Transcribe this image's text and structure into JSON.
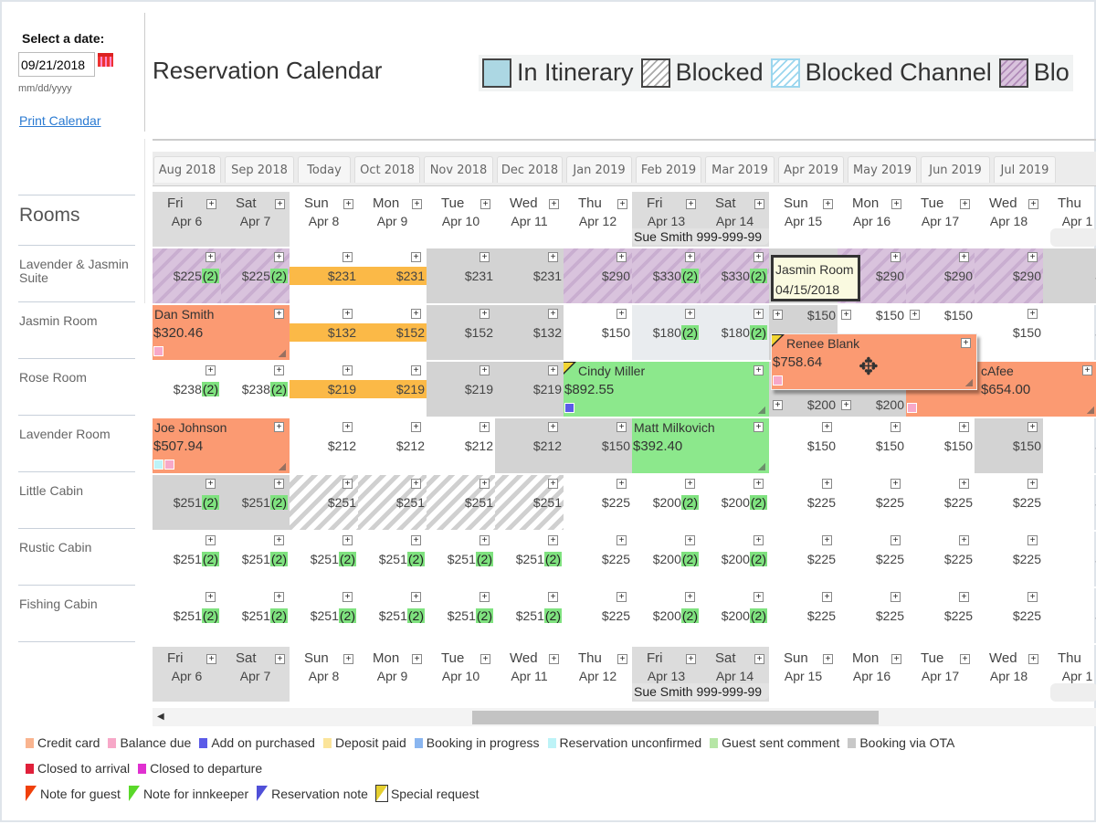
{
  "sidebar": {
    "select_label": "Select a date:",
    "date_value": "09/21/2018",
    "date_format": "mm/dd/yyyy",
    "print_link": "Print Calendar",
    "rooms_heading": "Rooms",
    "rooms": [
      "Lavender & Jasmin Suite",
      "Jasmin Room",
      "Rose Room",
      "Lavender Room",
      "Little Cabin",
      "Rustic Cabin",
      "Fishing Cabin"
    ]
  },
  "header": {
    "title": "Reservation Calendar",
    "legend": [
      {
        "label": "In Itinerary",
        "style": "itin"
      },
      {
        "label": "Blocked",
        "style": "blocked"
      },
      {
        "label": "Blocked Channel",
        "style": "channel"
      },
      {
        "label": "Blo",
        "style": "purple"
      }
    ]
  },
  "month_tabs": [
    "Aug 2018",
    "Sep 2018",
    "Today",
    "Oct 2018",
    "Nov 2018",
    "Dec 2018",
    "Jan 2019",
    "Feb 2019",
    "Mar 2019",
    "Apr 2019",
    "May 2019",
    "Jun 2019",
    "Jul 2019"
  ],
  "days": [
    {
      "d": "Fri",
      "dt": "Apr 6",
      "we": true
    },
    {
      "d": "Sat",
      "dt": "Apr 7",
      "we": true
    },
    {
      "d": "Sun",
      "dt": "Apr 8"
    },
    {
      "d": "Mon",
      "dt": "Apr 9"
    },
    {
      "d": "Tue",
      "dt": "Apr 10"
    },
    {
      "d": "Wed",
      "dt": "Apr 11"
    },
    {
      "d": "Thu",
      "dt": "Apr 12"
    },
    {
      "d": "Fri",
      "dt": "Apr 13",
      "we": true
    },
    {
      "d": "Sat",
      "dt": "Apr 14",
      "we": true
    },
    {
      "d": "Sun",
      "dt": "Apr 15"
    },
    {
      "d": "Mon",
      "dt": "Apr 16"
    },
    {
      "d": "Tue",
      "dt": "Apr 17"
    },
    {
      "d": "Wed",
      "dt": "Apr 18"
    },
    {
      "d": "Thu",
      "dt": "Apr 1"
    }
  ],
  "header_note": "Sue Smith 999-999-99",
  "grid": [
    [
      [
        "$225",
        "(2)",
        "p"
      ],
      [
        "$225",
        "(2)",
        "p"
      ],
      [
        "$231",
        "",
        "w"
      ],
      [
        "$231",
        "",
        "w"
      ],
      [
        "$231",
        "",
        "g"
      ],
      [
        "$231",
        "",
        "g"
      ],
      [
        "$290",
        "",
        "p"
      ],
      [
        "$330",
        "(2)",
        "p"
      ],
      [
        "$330",
        "(2)",
        "p"
      ],
      [
        "",
        "",
        "g"
      ],
      [
        "$290",
        "",
        "p"
      ],
      [
        "$290",
        "",
        "p"
      ],
      [
        "$290",
        "",
        "p"
      ],
      [
        "$2",
        "",
        "g"
      ]
    ],
    [
      [
        "",
        "",
        "w"
      ],
      [
        "",
        "",
        "w"
      ],
      [
        "$132",
        "",
        "w"
      ],
      [
        "$152",
        "",
        "w"
      ],
      [
        "$152",
        "",
        "g"
      ],
      [
        "$132",
        "",
        "g"
      ],
      [
        "$150",
        "",
        "w"
      ],
      [
        "$180",
        "(2)",
        "l"
      ],
      [
        "$180",
        "(2)",
        "l"
      ],
      [
        "$150",
        "",
        "g"
      ],
      [
        "$150",
        "",
        "w"
      ],
      [
        "$150",
        "",
        "w"
      ],
      [
        "$150",
        "",
        "w"
      ],
      [
        "$1",
        "",
        "w"
      ]
    ],
    [
      [
        "$238",
        "(2)",
        "w"
      ],
      [
        "$238",
        "(2)",
        "w"
      ],
      [
        "$219",
        "",
        "w"
      ],
      [
        "$219",
        "",
        "w"
      ],
      [
        "$219",
        "",
        "g"
      ],
      [
        "$219",
        "",
        "g"
      ],
      [
        "",
        "",
        "w"
      ],
      [
        "",
        "",
        "w"
      ],
      [
        "",
        "",
        "w"
      ],
      [
        "$200",
        "",
        "g"
      ],
      [
        "$200",
        "",
        "g"
      ],
      [
        "",
        "",
        "w"
      ],
      [
        "",
        "",
        "w"
      ],
      [
        "",
        "",
        "w"
      ]
    ],
    [
      [
        "",
        "",
        "w"
      ],
      [
        "",
        "",
        "w"
      ],
      [
        "$212",
        "",
        "w"
      ],
      [
        "$212",
        "",
        "w"
      ],
      [
        "$212",
        "",
        "w"
      ],
      [
        "$212",
        "",
        "g"
      ],
      [
        "$150",
        "",
        "g"
      ],
      [
        "",
        "",
        "w"
      ],
      [
        "",
        "",
        "w"
      ],
      [
        "$150",
        "",
        "w"
      ],
      [
        "$150",
        "",
        "w"
      ],
      [
        "$150",
        "",
        "w"
      ],
      [
        "$150",
        "",
        "g"
      ],
      [
        "$1",
        "",
        "w"
      ]
    ],
    [
      [
        "$251",
        "(2)",
        "g"
      ],
      [
        "$251",
        "(2)",
        "g"
      ],
      [
        "$251",
        "",
        "s"
      ],
      [
        "$251",
        "",
        "s"
      ],
      [
        "$251",
        "",
        "s"
      ],
      [
        "$251",
        "",
        "s"
      ],
      [
        "$225",
        "",
        "w"
      ],
      [
        "$200",
        "(2)",
        "w"
      ],
      [
        "$200",
        "(2)",
        "w"
      ],
      [
        "$225",
        "",
        "w"
      ],
      [
        "$225",
        "",
        "w"
      ],
      [
        "$225",
        "",
        "w"
      ],
      [
        "$225",
        "",
        "w"
      ],
      [
        "$2",
        "",
        "w"
      ]
    ],
    [
      [
        "$251",
        "(2)",
        "w"
      ],
      [
        "$251",
        "(2)",
        "w"
      ],
      [
        "$251",
        "(2)",
        "w"
      ],
      [
        "$251",
        "(2)",
        "w"
      ],
      [
        "$251",
        "(2)",
        "w"
      ],
      [
        "$251",
        "(2)",
        "w"
      ],
      [
        "$225",
        "",
        "w"
      ],
      [
        "$200",
        "(2)",
        "w"
      ],
      [
        "$200",
        "(2)",
        "w"
      ],
      [
        "$225",
        "",
        "w"
      ],
      [
        "$225",
        "",
        "w"
      ],
      [
        "$225",
        "",
        "w"
      ],
      [
        "$225",
        "",
        "w"
      ],
      [
        "$2",
        "",
        "w"
      ]
    ],
    [
      [
        "$251",
        "(2)",
        "w"
      ],
      [
        "$251",
        "(2)",
        "w"
      ],
      [
        "$251",
        "(2)",
        "w"
      ],
      [
        "$251",
        "(2)",
        "w"
      ],
      [
        "$251",
        "(2)",
        "w"
      ],
      [
        "$251",
        "(2)",
        "w"
      ],
      [
        "$225",
        "",
        "w"
      ],
      [
        "$200",
        "(2)",
        "w"
      ],
      [
        "$200",
        "(2)",
        "w"
      ],
      [
        "$225",
        "",
        "w"
      ],
      [
        "$225",
        "",
        "w"
      ],
      [
        "$225",
        "",
        "w"
      ],
      [
        "$225",
        "",
        "w"
      ],
      [
        "$2",
        "",
        "w"
      ]
    ]
  ],
  "bookings": [
    {
      "row": 1,
      "col": 0,
      "span": 2,
      "name": "Dan Smith",
      "amount": "$320.46",
      "color": "#fb9a72",
      "flags": [
        "#f7a8c8"
      ]
    },
    {
      "row": 2,
      "col": 6,
      "span": 3,
      "name": "Cindy Miller",
      "amount": "$892.55",
      "color": "#8ce88c",
      "flags": [
        "#5b5be8"
      ],
      "note": true
    },
    {
      "row": 2,
      "col": 11,
      "span": 3,
      "name": "cAfee",
      "amount": "$654.00",
      "color": "#fb9a72",
      "flags": [
        "#f7a8c8"
      ]
    },
    {
      "row": 3,
      "col": 0,
      "span": 2,
      "name": "Joe Johnson",
      "amount": "$507.94",
      "color": "#fb9a72",
      "flags": [
        "#bdf3f7",
        "#f7a8c8"
      ]
    },
    {
      "row": 3,
      "col": 7,
      "span": 2,
      "name": "Matt Milkovich",
      "amount": "$392.40",
      "color": "#8ce88c",
      "flags": []
    }
  ],
  "dragging": {
    "name": "Renee Blank",
    "amount": "$758.64"
  },
  "tooltip": {
    "room": "Jasmin Room",
    "date": "04/15/2018"
  },
  "footer_legend": {
    "row1": [
      {
        "label": "Credit card",
        "color": "#f9b48f"
      },
      {
        "label": "Balance due",
        "color": "#f7a8c8"
      },
      {
        "label": "Add on purchased",
        "color": "#5b5be8"
      },
      {
        "label": "Deposit paid",
        "color": "#fbe49a"
      },
      {
        "label": "Booking in progress",
        "color": "#8ab6f0"
      },
      {
        "label": "Reservation unconfirmed",
        "color": "#bdf3f7"
      },
      {
        "label": "Guest sent comment",
        "color": "#b6e6a6"
      },
      {
        "label": "Booking via OTA",
        "color": "#c8c8c8"
      }
    ],
    "row2": [
      {
        "label": "Closed to arrival",
        "color": "#e0203a"
      },
      {
        "label": "Closed to departure",
        "color": "#e030d0"
      }
    ],
    "row3": [
      {
        "label": "Note for guest",
        "color": "#f0400a"
      },
      {
        "label": "Note for innkeeper",
        "color": "#5ad82a"
      },
      {
        "label": "Reservation note",
        "color": "#5050d8"
      },
      {
        "label": "Special request",
        "color": "#e6d030"
      }
    ]
  }
}
